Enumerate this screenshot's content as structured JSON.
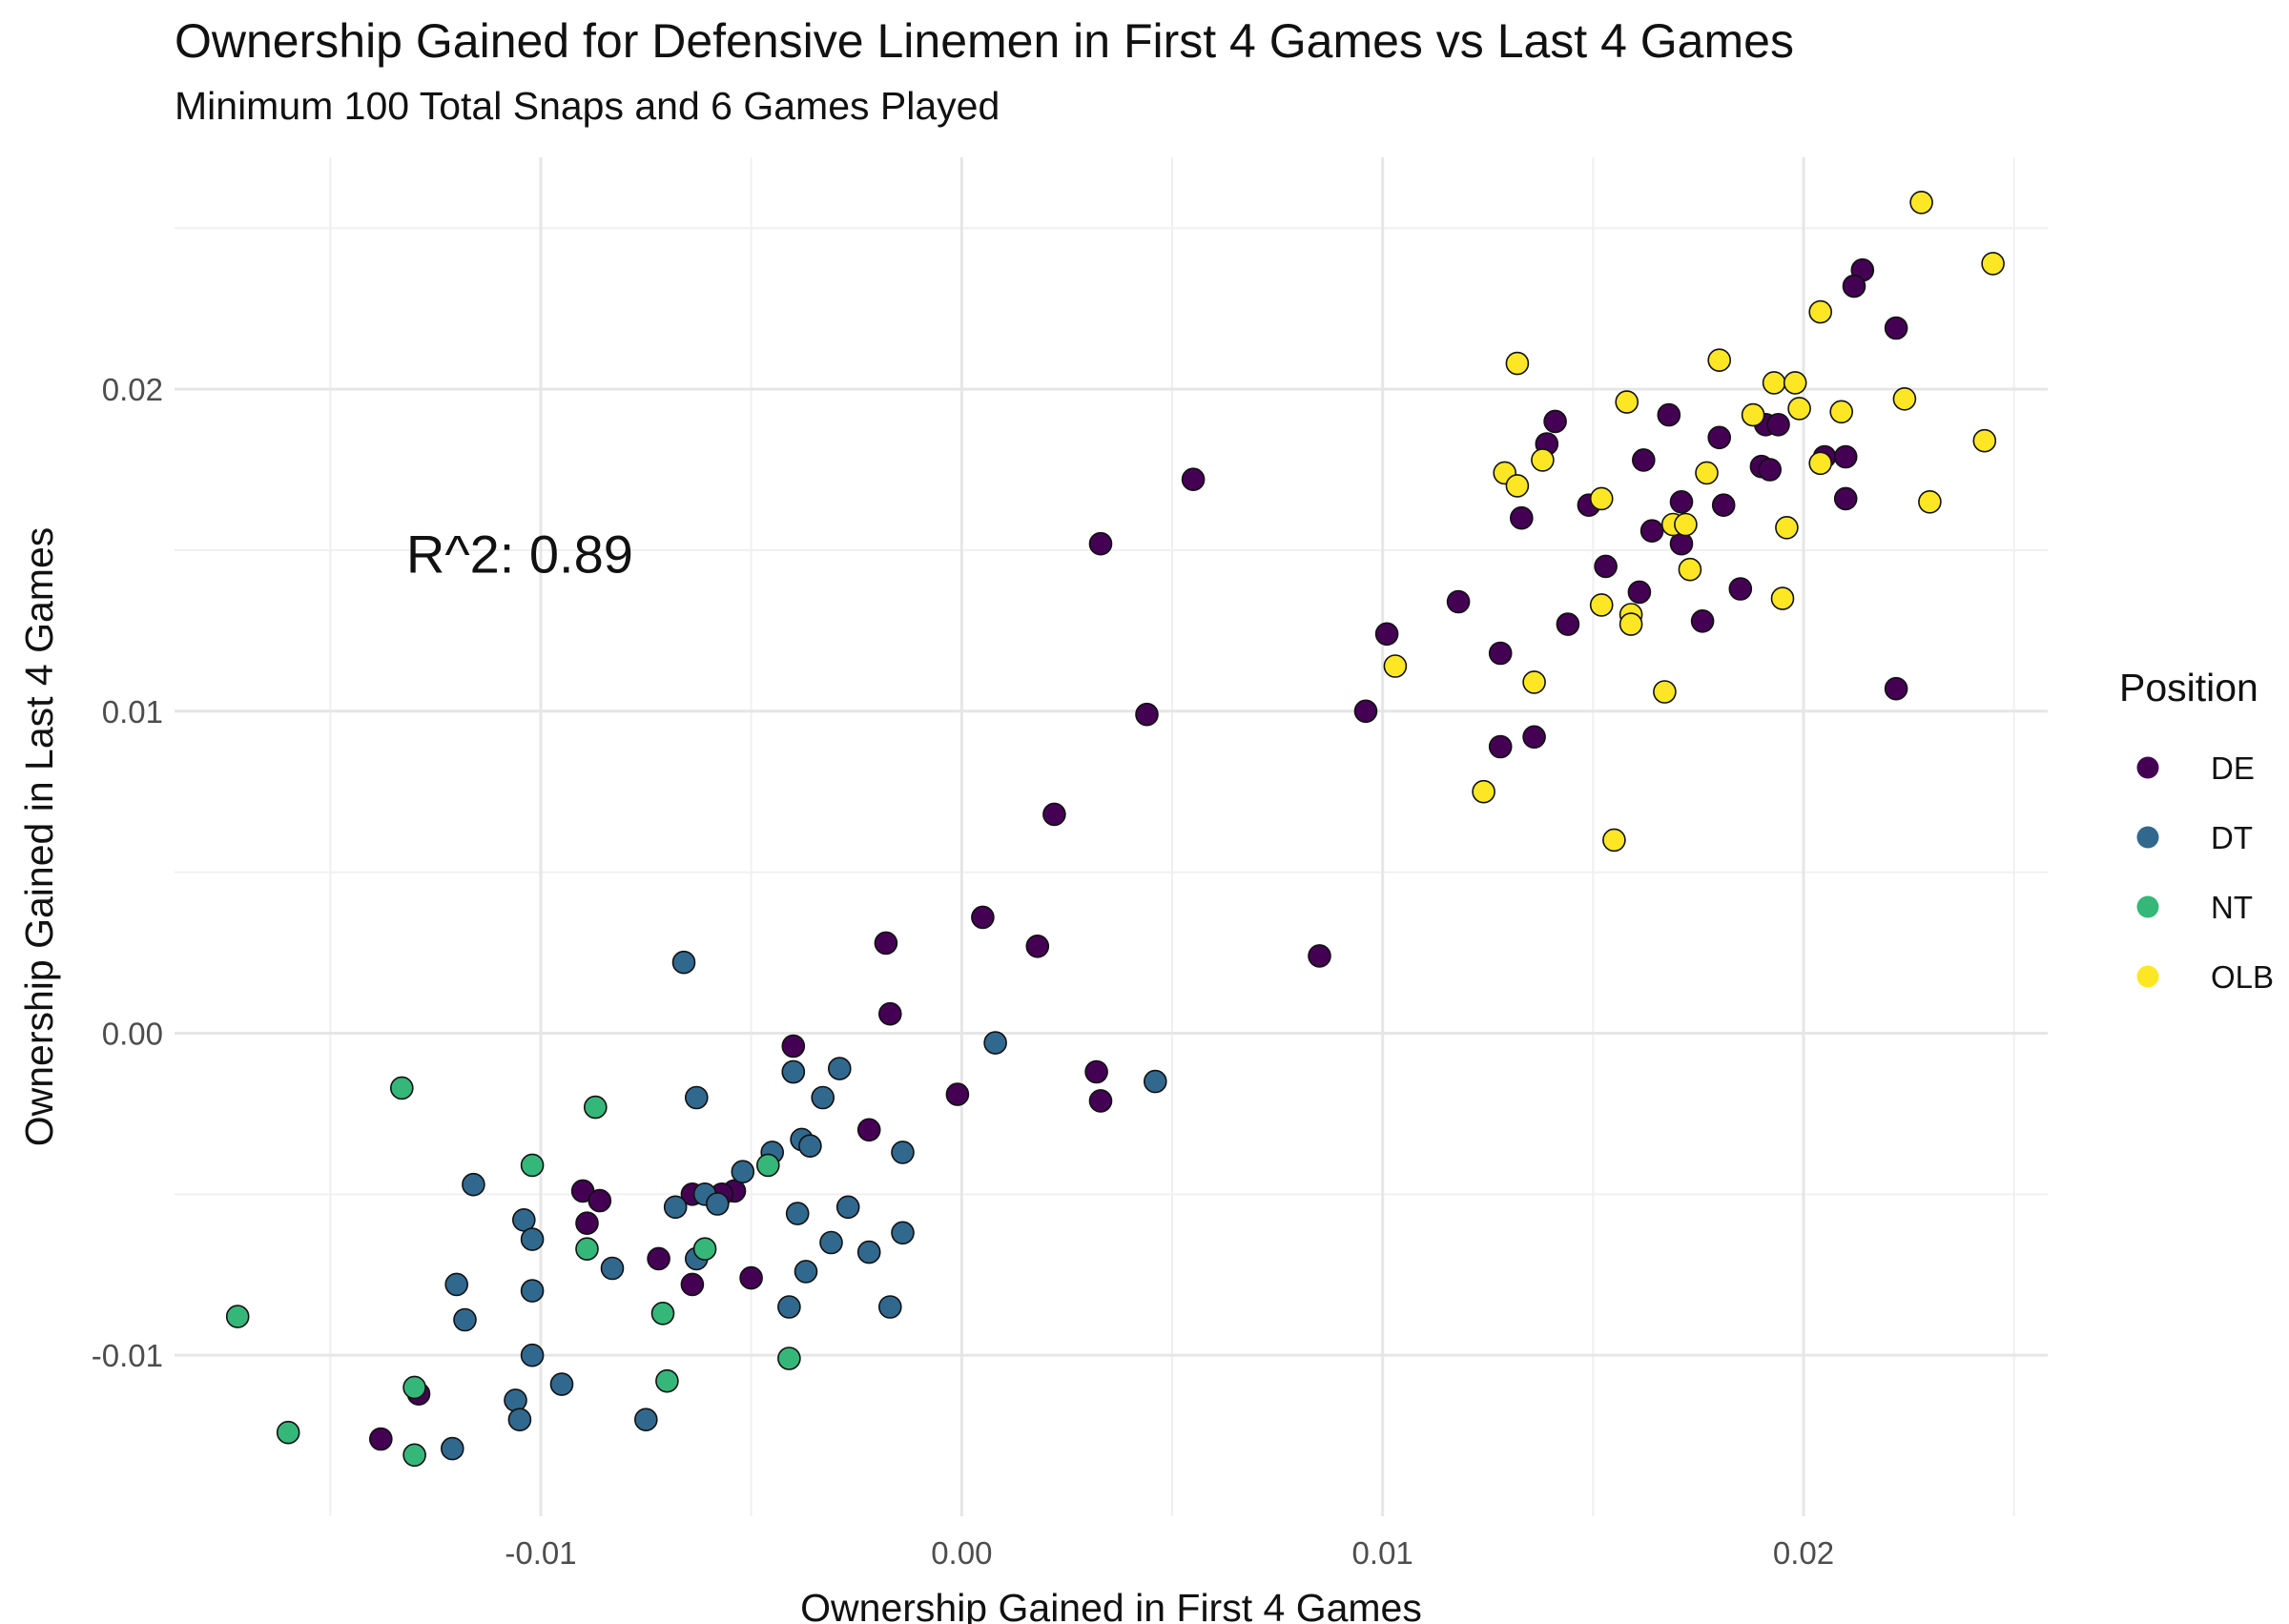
{
  "chart_data": {
    "type": "scatter",
    "title": "Ownership Gained for Defensive Linemen in First 4 Games vs Last 4 Games",
    "subtitle": "Minimum 100 Total Snaps and 6 Games Played",
    "xlabel": "Ownership Gained in First 4 Games",
    "ylabel": "Ownership Gained in Last 4 Games",
    "xlim": [
      -0.0187,
      0.0258
    ],
    "ylim": [
      -0.015,
      0.0272
    ],
    "x_ticks": [
      -0.01,
      0.0,
      0.01,
      0.02
    ],
    "x_tick_labels": [
      "-0.01",
      "0.00",
      "0.01",
      "0.02"
    ],
    "y_ticks": [
      -0.01,
      0.0,
      0.01,
      0.02
    ],
    "y_tick_labels": [
      "-0.01",
      "0.00",
      "0.01",
      "0.02"
    ],
    "grid": true,
    "annotation": {
      "text": "R^2: 0.89",
      "x": -0.0105,
      "y": 0.0149
    },
    "legend": {
      "title": "Position",
      "placement": "right"
    },
    "series": [
      {
        "name": "DE",
        "color": "#440154",
        "points": [
          [
            0.0214,
            0.0237
          ],
          [
            0.0212,
            0.0232
          ],
          [
            0.0222,
            0.0219
          ],
          [
            0.0055,
            0.0172
          ],
          [
            0.0033,
            0.0152
          ],
          [
            0.0141,
            0.019
          ],
          [
            0.0139,
            0.0183
          ],
          [
            0.0168,
            0.0192
          ],
          [
            0.018,
            0.0185
          ],
          [
            0.0162,
            0.0178
          ],
          [
            0.0191,
            0.0189
          ],
          [
            0.0194,
            0.0189
          ],
          [
            0.019,
            0.0176
          ],
          [
            0.0192,
            0.0175
          ],
          [
            0.0205,
            0.0179
          ],
          [
            0.021,
            0.0179
          ],
          [
            0.0149,
            0.0164
          ],
          [
            0.0133,
            0.016
          ],
          [
            0.0171,
            0.0165
          ],
          [
            0.0181,
            0.0164
          ],
          [
            0.021,
            0.0166
          ],
          [
            0.0164,
            0.0156
          ],
          [
            0.0171,
            0.0152
          ],
          [
            0.0153,
            0.0145
          ],
          [
            0.0118,
            0.0134
          ],
          [
            0.0161,
            0.0137
          ],
          [
            0.0185,
            0.0138
          ],
          [
            0.0144,
            0.0127
          ],
          [
            0.0176,
            0.0128
          ],
          [
            0.0101,
            0.0124
          ],
          [
            0.0128,
            0.0118
          ],
          [
            0.0222,
            0.0107
          ],
          [
            0.0096,
            0.01
          ],
          [
            0.0044,
            0.0099
          ],
          [
            0.0136,
            0.0092
          ],
          [
            0.0128,
            0.0089
          ],
          [
            0.0022,
            0.0068
          ],
          [
            0.0005,
            0.0036
          ],
          [
            -0.0018,
            0.0028
          ],
          [
            0.0018,
            0.0027
          ],
          [
            0.0085,
            0.0024
          ],
          [
            -0.0017,
            0.0006
          ],
          [
            -0.004,
            -0.0004
          ],
          [
            -0.004,
            -0.0012
          ],
          [
            0.0032,
            -0.0012
          ],
          [
            -0.0001,
            -0.0019
          ],
          [
            0.0033,
            -0.0021
          ],
          [
            -0.0022,
            -0.003
          ],
          [
            -0.009,
            -0.0049
          ],
          [
            -0.0086,
            -0.0052
          ],
          [
            -0.0064,
            -0.005
          ],
          [
            -0.0054,
            -0.0049
          ],
          [
            -0.0057,
            -0.005
          ],
          [
            -0.0089,
            -0.0059
          ],
          [
            -0.0072,
            -0.007
          ],
          [
            -0.005,
            -0.0076
          ],
          [
            -0.0064,
            -0.0078
          ],
          [
            -0.0129,
            -0.0112
          ],
          [
            -0.0138,
            -0.0126
          ]
        ]
      },
      {
        "name": "DT",
        "color": "#31688E",
        "points": [
          [
            -0.0066,
            0.0022
          ],
          [
            0.0008,
            -0.0003
          ],
          [
            0.0046,
            -0.0015
          ],
          [
            -0.0029,
            -0.0011
          ],
          [
            -0.004,
            -0.0012
          ],
          [
            -0.0063,
            -0.002
          ],
          [
            -0.0033,
            -0.002
          ],
          [
            -0.0038,
            -0.0033
          ],
          [
            -0.0036,
            -0.0035
          ],
          [
            -0.0045,
            -0.0037
          ],
          [
            -0.0014,
            -0.0037
          ],
          [
            -0.0052,
            -0.0043
          ],
          [
            -0.0116,
            -0.0047
          ],
          [
            -0.0061,
            -0.005
          ],
          [
            -0.0058,
            -0.0053
          ],
          [
            -0.0068,
            -0.0054
          ],
          [
            -0.0027,
            -0.0054
          ],
          [
            -0.0039,
            -0.0056
          ],
          [
            -0.0104,
            -0.0058
          ],
          [
            -0.0014,
            -0.0062
          ],
          [
            -0.0102,
            -0.0064
          ],
          [
            -0.0031,
            -0.0065
          ],
          [
            -0.0022,
            -0.0068
          ],
          [
            -0.0063,
            -0.007
          ],
          [
            -0.0083,
            -0.0073
          ],
          [
            -0.0037,
            -0.0074
          ],
          [
            -0.012,
            -0.0078
          ],
          [
            -0.0102,
            -0.008
          ],
          [
            -0.0017,
            -0.0085
          ],
          [
            -0.0041,
            -0.0085
          ],
          [
            -0.0118,
            -0.0089
          ],
          [
            -0.0102,
            -0.01
          ],
          [
            -0.0095,
            -0.0109
          ],
          [
            -0.0106,
            -0.0114
          ],
          [
            -0.0105,
            -0.012
          ],
          [
            -0.0075,
            -0.012
          ],
          [
            -0.0121,
            -0.0129
          ]
        ]
      },
      {
        "name": "NT",
        "color": "#35B779",
        "points": [
          [
            -0.0133,
            -0.0017
          ],
          [
            -0.0087,
            -0.0023
          ],
          [
            -0.0046,
            -0.0041
          ],
          [
            -0.0102,
            -0.0041
          ],
          [
            -0.0089,
            -0.0067
          ],
          [
            -0.0061,
            -0.0067
          ],
          [
            -0.0071,
            -0.0087
          ],
          [
            -0.0172,
            -0.0088
          ],
          [
            -0.0041,
            -0.0101
          ],
          [
            -0.007,
            -0.0108
          ],
          [
            -0.013,
            -0.011
          ],
          [
            -0.016,
            -0.0124
          ],
          [
            -0.013,
            -0.0131
          ]
        ]
      },
      {
        "name": "OLB",
        "color": "#FDE725",
        "points": [
          [
            0.0228,
            0.0258
          ],
          [
            0.0245,
            0.0239
          ],
          [
            0.0204,
            0.0224
          ],
          [
            0.0132,
            0.0208
          ],
          [
            0.018,
            0.0209
          ],
          [
            0.0193,
            0.0202
          ],
          [
            0.0198,
            0.0202
          ],
          [
            0.0158,
            0.0196
          ],
          [
            0.0224,
            0.0197
          ],
          [
            0.0199,
            0.0194
          ],
          [
            0.0209,
            0.0193
          ],
          [
            0.0188,
            0.0192
          ],
          [
            0.0243,
            0.0184
          ],
          [
            0.0204,
            0.0177
          ],
          [
            0.0138,
            0.0178
          ],
          [
            0.0129,
            0.0174
          ],
          [
            0.0177,
            0.0174
          ],
          [
            0.0132,
            0.017
          ],
          [
            0.0152,
            0.0166
          ],
          [
            0.023,
            0.0165
          ],
          [
            0.0169,
            0.0158
          ],
          [
            0.0172,
            0.0158
          ],
          [
            0.0196,
            0.0157
          ],
          [
            0.0173,
            0.0144
          ],
          [
            0.0195,
            0.0135
          ],
          [
            0.0152,
            0.0133
          ],
          [
            0.0159,
            0.013
          ],
          [
            0.0159,
            0.0127
          ],
          [
            0.0103,
            0.0114
          ],
          [
            0.0136,
            0.0109
          ],
          [
            0.0167,
            0.0106
          ],
          [
            0.0124,
            0.0075
          ],
          [
            0.0155,
            0.006
          ]
        ]
      }
    ]
  }
}
